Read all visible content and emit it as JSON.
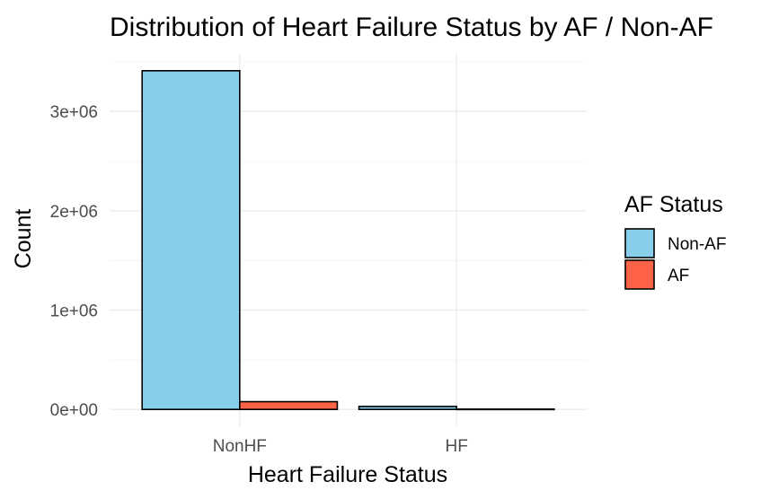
{
  "chart_data": {
    "type": "bar",
    "title": "Distribution of Heart Failure Status by AF / Non-AF",
    "xlabel": "Heart Failure Status",
    "ylabel": "Count",
    "categories": [
      "NonHF",
      "HF"
    ],
    "series": [
      {
        "name": "Non-AF",
        "color": "#87CEEB",
        "values": [
          3410000,
          30000
        ]
      },
      {
        "name": "AF",
        "color": "#FF6347",
        "values": [
          78000,
          3000
        ]
      }
    ],
    "yticks": [
      {
        "value": 0,
        "label": "0e+00"
      },
      {
        "value": 1000000,
        "label": "1e+06"
      },
      {
        "value": 2000000,
        "label": "2e+06"
      },
      {
        "value": 3000000,
        "label": "3e+06"
      }
    ],
    "ylim": [
      -170000,
      3580000
    ],
    "grid": true,
    "legend": {
      "title": "AF Status",
      "position": "right"
    }
  }
}
